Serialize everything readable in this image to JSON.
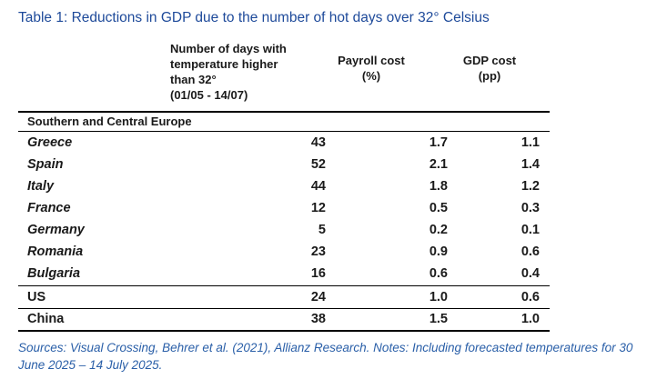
{
  "title": "Table 1: Reductions in GDP due to the number of hot days over 32° Celsius",
  "headers": {
    "days": [
      "Number of days with",
      "temperature higher",
      "than 32°",
      "(01/05 - 14/07)"
    ],
    "payroll": [
      "Payroll cost",
      "(%)"
    ],
    "gdp": [
      "GDP cost",
      "(pp)"
    ]
  },
  "section_label": "Southern and Central Europe",
  "rows": [
    {
      "country": "Greece",
      "days": "43",
      "payroll": "1.7",
      "gdp": "1.1"
    },
    {
      "country": "Spain",
      "days": "52",
      "payroll": "2.1",
      "gdp": "1.4"
    },
    {
      "country": "Italy",
      "days": "44",
      "payroll": "1.8",
      "gdp": "1.2"
    },
    {
      "country": "France",
      "days": "12",
      "payroll": "0.5",
      "gdp": "0.3"
    },
    {
      "country": "Germany",
      "days": "5",
      "payroll": "0.2",
      "gdp": "0.1"
    },
    {
      "country": "Romania",
      "days": "23",
      "payroll": "0.9",
      "gdp": "0.6"
    },
    {
      "country": "Bulgaria",
      "days": "16",
      "payroll": "0.6",
      "gdp": "0.4"
    },
    {
      "country": "US",
      "days": "24",
      "payroll": "1.0",
      "gdp": "0.6"
    },
    {
      "country": "China",
      "days": "38",
      "payroll": "1.5",
      "gdp": "1.0"
    }
  ],
  "notes": "Sources: Visual Crossing, Behrer et al. (2021), Allianz Research. Notes: Including forecasted temperatures for 30 June 2025 – 14 July 2025.",
  "colors": {
    "title": "#1e4a9a",
    "notes": "#2a5fa8",
    "rules": "#000000"
  }
}
